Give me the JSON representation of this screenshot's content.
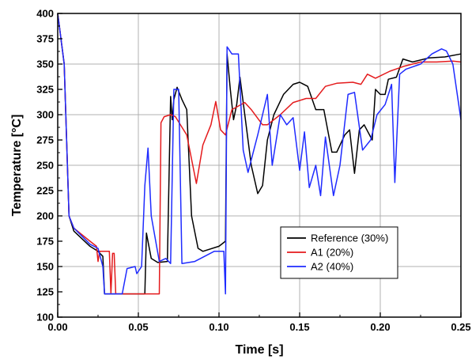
{
  "chart_data": {
    "type": "line",
    "title": "",
    "xlabel": "Time [s]",
    "ylabel": "Temperature [°C]",
    "xlim": [
      0,
      0.25
    ],
    "ylim": [
      100,
      400
    ],
    "xticks": [
      0.0,
      0.05,
      0.1,
      0.15,
      0.2,
      0.25
    ],
    "xtick_labels": [
      "0.00",
      "0.05",
      "0.10",
      "0.15",
      "0.20",
      "0.25"
    ],
    "yticks": [
      100,
      125,
      150,
      175,
      200,
      225,
      250,
      275,
      300,
      325,
      350,
      375,
      400
    ],
    "ytick_labels": [
      "100",
      "125",
      "150",
      "175",
      "200",
      "225",
      "250",
      "275",
      "300",
      "325",
      "350",
      "375",
      "400"
    ],
    "grid": true,
    "legend_position": "lower-right",
    "series": [
      {
        "name": "Reference (30%)",
        "color": "#000000",
        "points": [
          [
            0,
            400
          ],
          [
            0.004,
            350
          ],
          [
            0.007,
            200
          ],
          [
            0.01,
            185
          ],
          [
            0.02,
            170
          ],
          [
            0.025,
            165
          ],
          [
            0.028,
            160
          ],
          [
            0.029,
            123
          ],
          [
            0.054,
            123
          ],
          [
            0.055,
            183
          ],
          [
            0.058,
            158
          ],
          [
            0.062,
            154
          ],
          [
            0.068,
            155
          ],
          [
            0.07,
            318
          ],
          [
            0.071,
            295
          ],
          [
            0.072,
            315
          ],
          [
            0.074,
            327
          ],
          [
            0.077,
            315
          ],
          [
            0.08,
            305
          ],
          [
            0.083,
            200
          ],
          [
            0.087,
            168
          ],
          [
            0.09,
            165
          ],
          [
            0.1,
            170
          ],
          [
            0.104,
            175
          ],
          [
            0.105,
            360
          ],
          [
            0.107,
            325
          ],
          [
            0.109,
            295
          ],
          [
            0.111,
            310
          ],
          [
            0.113,
            337
          ],
          [
            0.116,
            300
          ],
          [
            0.12,
            250
          ],
          [
            0.124,
            222
          ],
          [
            0.127,
            230
          ],
          [
            0.13,
            275
          ],
          [
            0.134,
            300
          ],
          [
            0.14,
            320
          ],
          [
            0.146,
            330
          ],
          [
            0.15,
            332
          ],
          [
            0.155,
            328
          ],
          [
            0.16,
            305
          ],
          [
            0.165,
            305
          ],
          [
            0.17,
            263
          ],
          [
            0.173,
            263
          ],
          [
            0.178,
            280
          ],
          [
            0.181,
            285
          ],
          [
            0.184,
            242
          ],
          [
            0.187,
            285
          ],
          [
            0.19,
            290
          ],
          [
            0.195,
            275
          ],
          [
            0.197,
            325
          ],
          [
            0.2,
            320
          ],
          [
            0.203,
            320
          ],
          [
            0.205,
            335
          ],
          [
            0.21,
            337
          ],
          [
            0.214,
            355
          ],
          [
            0.22,
            352
          ],
          [
            0.23,
            356
          ],
          [
            0.24,
            357
          ],
          [
            0.25,
            360
          ]
        ]
      },
      {
        "name": "A1 (20%)",
        "color": "#e41a1c",
        "points": [
          [
            0,
            400
          ],
          [
            0.004,
            350
          ],
          [
            0.007,
            200
          ],
          [
            0.01,
            188
          ],
          [
            0.02,
            175
          ],
          [
            0.024,
            170
          ],
          [
            0.025,
            155
          ],
          [
            0.026,
            165
          ],
          [
            0.03,
            165
          ],
          [
            0.032,
            165
          ],
          [
            0.033,
            123
          ],
          [
            0.034,
            163
          ],
          [
            0.035,
            163
          ],
          [
            0.036,
            123
          ],
          [
            0.063,
            123
          ],
          [
            0.064,
            292
          ],
          [
            0.066,
            298
          ],
          [
            0.07,
            300
          ],
          [
            0.073,
            298
          ],
          [
            0.08,
            280
          ],
          [
            0.086,
            232
          ],
          [
            0.09,
            270
          ],
          [
            0.095,
            290
          ],
          [
            0.098,
            313
          ],
          [
            0.101,
            285
          ],
          [
            0.104,
            280
          ],
          [
            0.108,
            305
          ],
          [
            0.116,
            312
          ],
          [
            0.12,
            305
          ],
          [
            0.127,
            290
          ],
          [
            0.13,
            290
          ],
          [
            0.138,
            300
          ],
          [
            0.146,
            312
          ],
          [
            0.154,
            316
          ],
          [
            0.16,
            316
          ],
          [
            0.166,
            328
          ],
          [
            0.173,
            331
          ],
          [
            0.183,
            332
          ],
          [
            0.188,
            330
          ],
          [
            0.192,
            340
          ],
          [
            0.197,
            336
          ],
          [
            0.206,
            343
          ],
          [
            0.215,
            348
          ],
          [
            0.225,
            352
          ],
          [
            0.235,
            352
          ],
          [
            0.245,
            353
          ],
          [
            0.25,
            352
          ]
        ]
      },
      {
        "name": "A2 (40%)",
        "color": "#1f2bff",
        "points": [
          [
            0,
            400
          ],
          [
            0.004,
            350
          ],
          [
            0.007,
            200
          ],
          [
            0.01,
            188
          ],
          [
            0.02,
            172
          ],
          [
            0.025,
            168
          ],
          [
            0.028,
            150
          ],
          [
            0.029,
            123
          ],
          [
            0.04,
            123
          ],
          [
            0.043,
            148
          ],
          [
            0.048,
            150
          ],
          [
            0.049,
            143
          ],
          [
            0.052,
            150
          ],
          [
            0.054,
            230
          ],
          [
            0.056,
            267
          ],
          [
            0.058,
            200
          ],
          [
            0.063,
            155
          ],
          [
            0.067,
            158
          ],
          [
            0.07,
            153
          ],
          [
            0.072,
            325
          ],
          [
            0.075,
            325
          ],
          [
            0.077,
            153
          ],
          [
            0.085,
            155
          ],
          [
            0.097,
            165
          ],
          [
            0.103,
            165
          ],
          [
            0.104,
            123
          ],
          [
            0.105,
            367
          ],
          [
            0.108,
            360
          ],
          [
            0.112,
            360
          ],
          [
            0.115,
            265
          ],
          [
            0.118,
            243
          ],
          [
            0.124,
            280
          ],
          [
            0.13,
            320
          ],
          [
            0.133,
            250
          ],
          [
            0.138,
            300
          ],
          [
            0.142,
            290
          ],
          [
            0.146,
            297
          ],
          [
            0.15,
            245
          ],
          [
            0.153,
            283
          ],
          [
            0.156,
            228
          ],
          [
            0.16,
            250
          ],
          [
            0.163,
            220
          ],
          [
            0.166,
            278
          ],
          [
            0.171,
            220
          ],
          [
            0.175,
            250
          ],
          [
            0.18,
            320
          ],
          [
            0.184,
            322
          ],
          [
            0.189,
            265
          ],
          [
            0.194,
            275
          ],
          [
            0.198,
            300
          ],
          [
            0.203,
            310
          ],
          [
            0.207,
            330
          ],
          [
            0.209,
            233
          ],
          [
            0.212,
            340
          ],
          [
            0.216,
            345
          ],
          [
            0.225,
            350
          ],
          [
            0.232,
            360
          ],
          [
            0.238,
            365
          ],
          [
            0.241,
            363
          ],
          [
            0.245,
            350
          ],
          [
            0.25,
            295
          ]
        ]
      }
    ]
  }
}
